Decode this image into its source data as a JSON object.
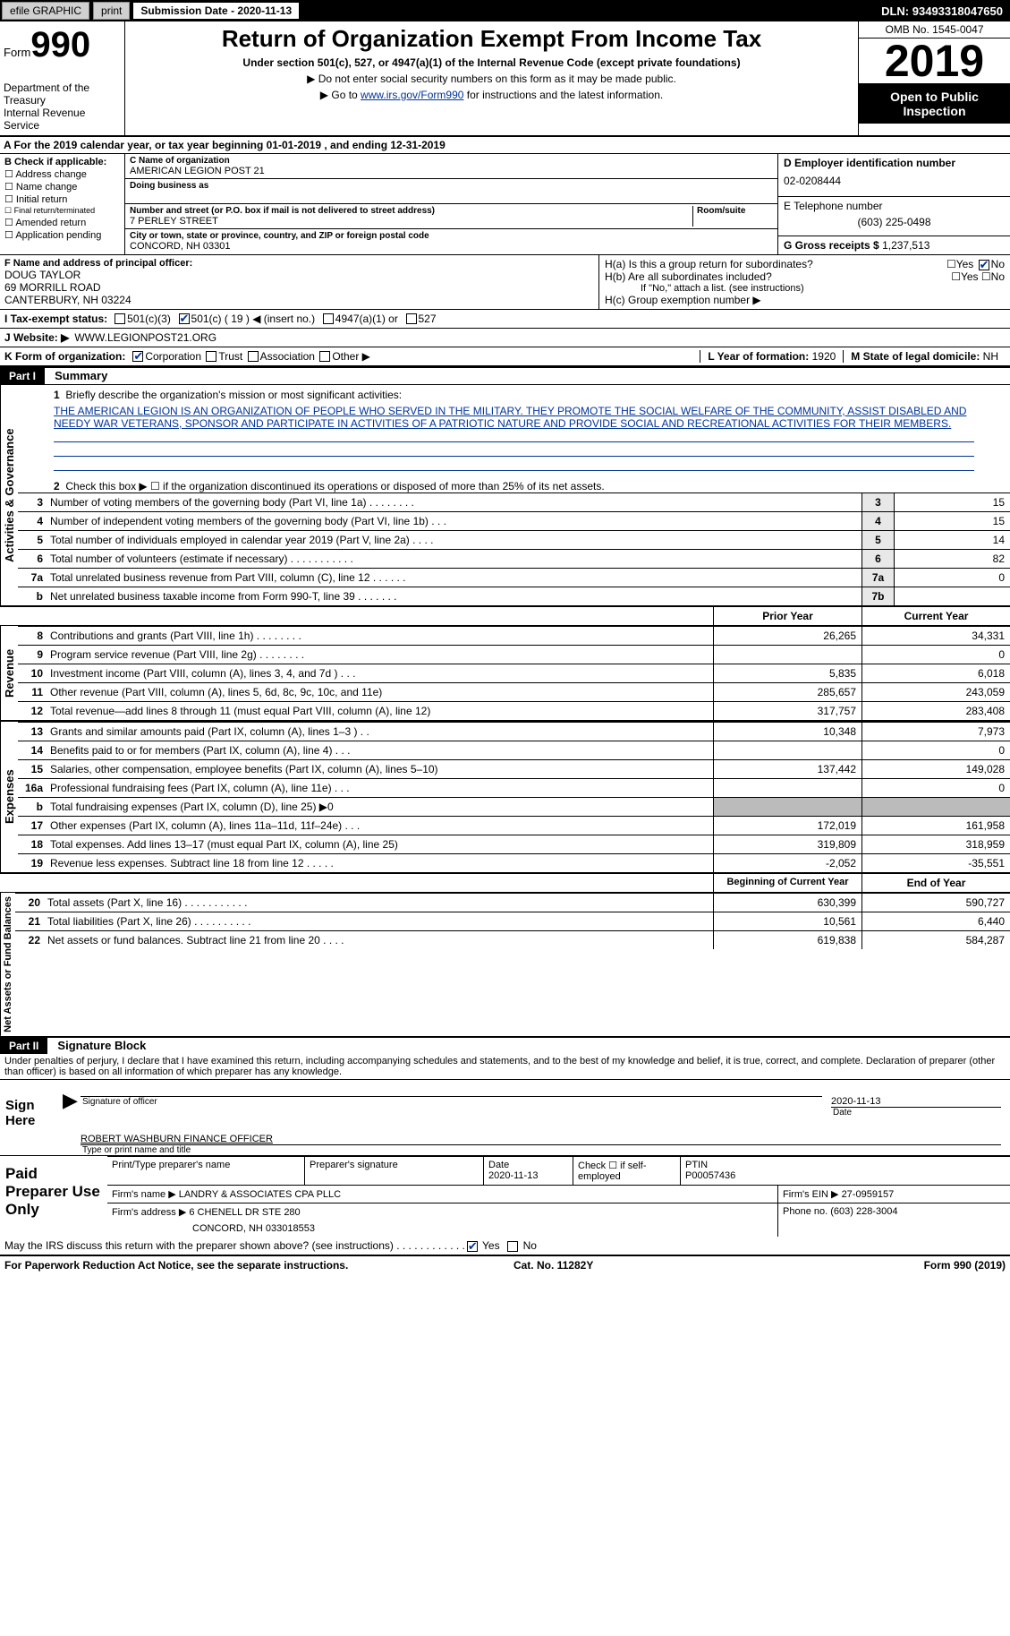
{
  "topbar": {
    "efile": "efile GRAPHIC",
    "print": "print",
    "subdate_lbl": "Submission Date - ",
    "subdate": "2020-11-13",
    "dln_lbl": "DLN: ",
    "dln": "93493318047650"
  },
  "header": {
    "form_lbl": "Form",
    "form_no": "990",
    "dept": "Department of the Treasury\nInternal Revenue Service",
    "title": "Return of Organization Exempt From Income Tax",
    "sub": "Under section 501(c), 527, or 4947(a)(1) of the Internal Revenue Code (except private foundations)",
    "note1": "▶ Do not enter social security numbers on this form as it may be made public.",
    "note2a": "▶ Go to ",
    "note2link": "www.irs.gov/Form990",
    "note2b": " for instructions and the latest information.",
    "omb": "OMB No. 1545-0047",
    "year": "2019",
    "open": "Open to Public Inspection"
  },
  "taxyear": "A For the 2019 calendar year, or tax year beginning 01-01-2019   , and ending 12-31-2019",
  "B": {
    "lbl": "B Check if applicable:",
    "items": [
      "Address change",
      "Name change",
      "Initial return",
      "Final return/terminated",
      "Amended return",
      "Application pending"
    ]
  },
  "C": {
    "name_lbl": "C Name of organization",
    "name": "AMERICAN LEGION POST 21",
    "dba_lbl": "Doing business as",
    "addr_lbl": "Number and street (or P.O. box if mail is not delivered to street address)",
    "room_lbl": "Room/suite",
    "addr": "7 PERLEY STREET",
    "city_lbl": "City or town, state or province, country, and ZIP or foreign postal code",
    "city": "CONCORD, NH  03301"
  },
  "D": {
    "ein_lbl": "D Employer identification number",
    "ein": "02-0208444",
    "tel_lbl": "E Telephone number",
    "tel": "(603) 225-0498",
    "gross_lbl": "G Gross receipts $ ",
    "gross": "1,237,513"
  },
  "F": {
    "lbl": "F Name and address of principal officer:",
    "name": "DOUG TAYLOR",
    "addr1": "69 MORRILL ROAD",
    "addr2": "CANTERBURY, NH  03224"
  },
  "H": {
    "a": "H(a)  Is this a group return for subordinates?",
    "b": "H(b)  Are all subordinates included?",
    "bnote": "If \"No,\" attach a list. (see instructions)",
    "c": "H(c)  Group exemption number ▶",
    "yes": "Yes",
    "no": "No"
  },
  "I": {
    "lbl": "I  Tax-exempt status:",
    "c3": "501(c)(3)",
    "c": "501(c) ( 19 ) ◀ (insert no.)",
    "a1": "4947(a)(1) or",
    "527": "527"
  },
  "J": {
    "lbl": "J  Website: ▶",
    "val": "WWW.LEGIONPOST21.ORG"
  },
  "K": {
    "lbl": "K Form of organization:",
    "corp": "Corporation",
    "trust": "Trust",
    "assoc": "Association",
    "other": "Other ▶"
  },
  "L": {
    "lbl": "L Year of formation: ",
    "val": "1920"
  },
  "M": {
    "lbl": "M State of legal domicile: ",
    "val": "NH"
  },
  "part1": {
    "hdr": "Part I",
    "title": "Summary",
    "q1": "Briefly describe the organization's mission or most significant activities:",
    "q1ans": "THE AMERICAN LEGION IS AN ORGANIZATION OF PEOPLE WHO SERVED IN THE MILITARY. THEY PROMOTE THE SOCIAL WELFARE OF THE COMMUNITY, ASSIST DISABLED AND NEEDY WAR VETERANS, SPONSOR AND PARTICIPATE IN ACTIVITIES OF A PATRIOTIC NATURE AND PROVIDE SOCIAL AND RECREATIONAL ACTIVITIES FOR THEIR MEMBERS.",
    "q2": "Check this box ▶ ☐ if the organization discontinued its operations or disposed of more than 25% of its net assets."
  },
  "gov": {
    "label": "Activities & Governance",
    "rows": [
      {
        "n": "3",
        "t": "Number of voting members of the governing body (Part VI, line 1a)  .   .   .   .   .   .   .   .",
        "b": "3",
        "v": "15"
      },
      {
        "n": "4",
        "t": "Number of independent voting members of the governing body (Part VI, line 1b)   .   .   .",
        "b": "4",
        "v": "15"
      },
      {
        "n": "5",
        "t": "Total number of individuals employed in calendar year 2019 (Part V, line 2a)   .   .   .   .",
        "b": "5",
        "v": "14"
      },
      {
        "n": "6",
        "t": "Total number of volunteers (estimate if necessary)   .   .   .   .   .   .   .   .   .   .   .",
        "b": "6",
        "v": "82"
      },
      {
        "n": "7a",
        "t": "Total unrelated business revenue from Part VIII, column (C), line 12   .   .   .   .   .   .",
        "b": "7a",
        "v": "0"
      },
      {
        "n": "b",
        "t": "Net unrelated business taxable income from Form 990-T, line 39   .   .   .   .   .   .   .",
        "b": "7b",
        "v": ""
      }
    ]
  },
  "hdr2": {
    "prior": "Prior Year",
    "curr": "Current Year"
  },
  "rev": {
    "label": "Revenue",
    "rows": [
      {
        "n": "8",
        "t": "Contributions and grants (Part VIII, line 1h)   .   .   .   .   .   .   .   .",
        "p": "26,265",
        "c": "34,331"
      },
      {
        "n": "9",
        "t": "Program service revenue (Part VIII, line 2g)   .   .   .   .   .   .   .   .",
        "p": "",
        "c": "0"
      },
      {
        "n": "10",
        "t": "Investment income (Part VIII, column (A), lines 3, 4, and 7d )   .   .   .",
        "p": "5,835",
        "c": "6,018"
      },
      {
        "n": "11",
        "t": "Other revenue (Part VIII, column (A), lines 5, 6d, 8c, 9c, 10c, and 11e)",
        "p": "285,657",
        "c": "243,059"
      },
      {
        "n": "12",
        "t": "Total revenue—add lines 8 through 11 (must equal Part VIII, column (A), line 12)",
        "p": "317,757",
        "c": "283,408"
      }
    ]
  },
  "exp": {
    "label": "Expenses",
    "rows": [
      {
        "n": "13",
        "t": "Grants and similar amounts paid (Part IX, column (A), lines 1–3 )   .   .",
        "p": "10,348",
        "c": "7,973"
      },
      {
        "n": "14",
        "t": "Benefits paid to or for members (Part IX, column (A), line 4)   .   .   .",
        "p": "",
        "c": "0"
      },
      {
        "n": "15",
        "t": "Salaries, other compensation, employee benefits (Part IX, column (A), lines 5–10)",
        "p": "137,442",
        "c": "149,028"
      },
      {
        "n": "16a",
        "t": "Professional fundraising fees (Part IX, column (A), line 11e)   .   .   .",
        "p": "",
        "c": "0"
      },
      {
        "n": "b",
        "t": "Total fundraising expenses (Part IX, column (D), line 25) ▶0",
        "p": "shade",
        "c": "shade"
      },
      {
        "n": "17",
        "t": "Other expenses (Part IX, column (A), lines 11a–11d, 11f–24e)   .   .   .",
        "p": "172,019",
        "c": "161,958"
      },
      {
        "n": "18",
        "t": "Total expenses. Add lines 13–17 (must equal Part IX, column (A), line 25)",
        "p": "319,809",
        "c": "318,959"
      },
      {
        "n": "19",
        "t": "Revenue less expenses. Subtract line 18 from line 12   .   .   .   .   .",
        "p": "-2,052",
        "c": "-35,551"
      }
    ]
  },
  "hdr3": {
    "prior": "Beginning of Current Year",
    "curr": "End of Year"
  },
  "net": {
    "label": "Net Assets or Fund Balances",
    "rows": [
      {
        "n": "20",
        "t": "Total assets (Part X, line 16)   .   .   .   .   .   .   .   .   .   .   .",
        "p": "630,399",
        "c": "590,727"
      },
      {
        "n": "21",
        "t": "Total liabilities (Part X, line 26)   .   .   .   .   .   .   .   .   .   .",
        "p": "10,561",
        "c": "6,440"
      },
      {
        "n": "22",
        "t": "Net assets or fund balances. Subtract line 21 from line 20   .   .   .   .",
        "p": "619,838",
        "c": "584,287"
      }
    ]
  },
  "part2": {
    "hdr": "Part II",
    "title": "Signature Block",
    "decl": "Under penalties of perjury, I declare that I have examined this return, including accompanying schedules and statements, and to the best of my knowledge and belief, it is true, correct, and complete. Declaration of preparer (other than officer) is based on all information of which preparer has any knowledge."
  },
  "sign": {
    "here": "Sign Here",
    "sig": "Signature of officer",
    "date": "2020-11-13",
    "datelbl": "Date",
    "name": "ROBERT WASHBURN FINANCE OFFICER",
    "namelbl": "Type or print name and title"
  },
  "prep": {
    "lbl": "Paid Preparer Use Only",
    "h": [
      "Print/Type preparer's name",
      "Preparer's signature",
      "Date",
      "Check ☐ if self-employed",
      "PTIN"
    ],
    "hv": [
      "",
      "",
      "2020-11-13",
      "",
      "P00057436"
    ],
    "firm_lbl": "Firm's name   ▶ ",
    "firm": "LANDRY & ASSOCIATES CPA PLLC",
    "ein_lbl": "Firm's EIN ▶ ",
    "ein": "27-0959157",
    "addr_lbl": "Firm's address ▶ ",
    "addr": "6 CHENELL DR STE 280",
    "addr2": "CONCORD, NH  033018553",
    "ph_lbl": "Phone no. ",
    "ph": "(603) 228-3004"
  },
  "discuss": {
    "q": "May the IRS discuss this return with the preparer shown above? (see instructions)   .   .   .   .   .   .   .   .   .   .   .   .",
    "yes": "Yes",
    "no": "No"
  },
  "foot": {
    "l": "For Paperwork Reduction Act Notice, see the separate instructions.",
    "c": "Cat. No. 11282Y",
    "r": "Form 990 (2019)"
  }
}
